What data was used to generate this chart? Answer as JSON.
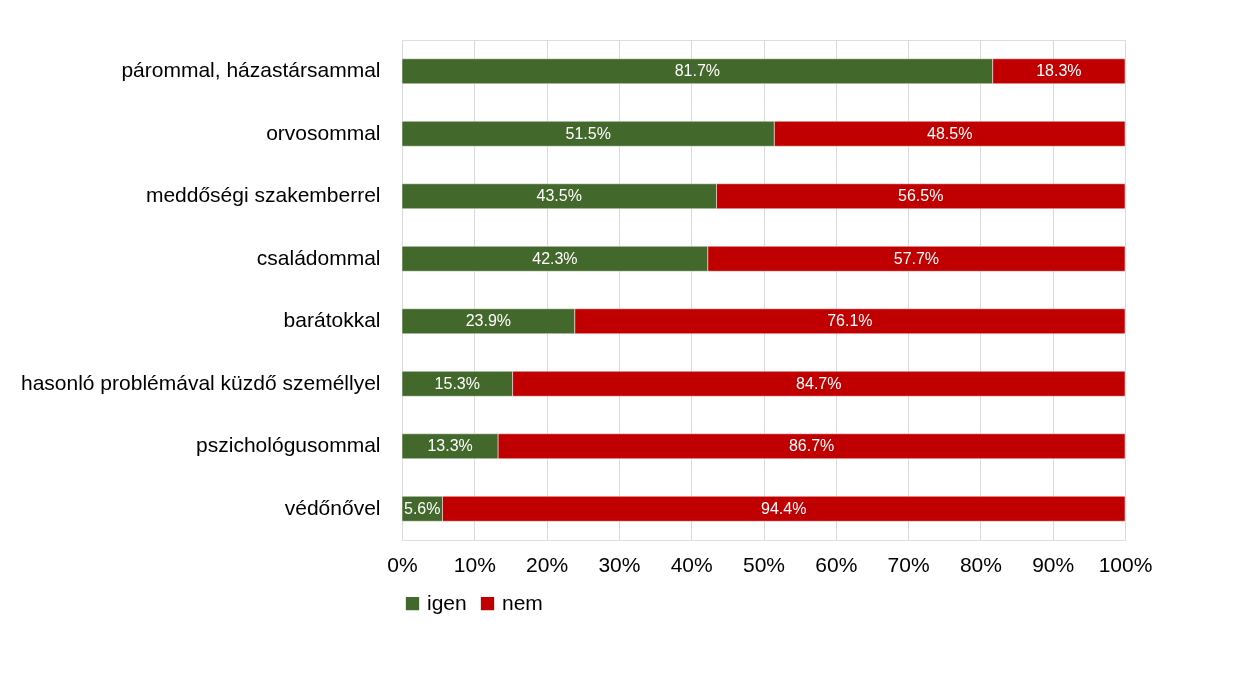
{
  "chart_data": {
    "type": "bar",
    "orientation": "horizontal",
    "stacked": true,
    "grid": "x",
    "legend": "bottom",
    "categories": [
      "párommal, házastársammal",
      "orvosommal",
      "meddőségi szakemberrel",
      "családommal",
      "barátokkal",
      "hasonló problémával küzdő személlyel",
      "pszichológusommal",
      "védőnővel"
    ],
    "series": [
      {
        "name": "igen",
        "color": "#43682b",
        "values": [
          81.7,
          51.5,
          43.5,
          42.3,
          23.9,
          15.3,
          13.3,
          5.6
        ],
        "value_labels": [
          "81.7%",
          "51.5%",
          "43.5%",
          "42.3%",
          "23.9%",
          "15.3%",
          "13.3%",
          "5.6%"
        ]
      },
      {
        "name": "nem",
        "color": "#c00000",
        "values": [
          18.3,
          48.5,
          56.5,
          57.7,
          76.1,
          84.7,
          86.7,
          94.4
        ],
        "value_labels": [
          "18.3%",
          "48.5%",
          "56.5%",
          "57.7%",
          "76.1%",
          "84.7%",
          "86.7%",
          "94.4%"
        ]
      }
    ],
    "xlim": [
      0,
      100
    ],
    "xticks": [
      {
        "value": 0,
        "label": "0%"
      },
      {
        "value": 10,
        "label": "10%"
      },
      {
        "value": 20,
        "label": "20%"
      },
      {
        "value": 30,
        "label": "30%"
      },
      {
        "value": 40,
        "label": "40%"
      },
      {
        "value": 50,
        "label": "50%"
      },
      {
        "value": 60,
        "label": "60%"
      },
      {
        "value": 70,
        "label": "70%"
      },
      {
        "value": 80,
        "label": "80%"
      },
      {
        "value": 90,
        "label": "90%"
      },
      {
        "value": 100,
        "label": "100%"
      }
    ]
  }
}
